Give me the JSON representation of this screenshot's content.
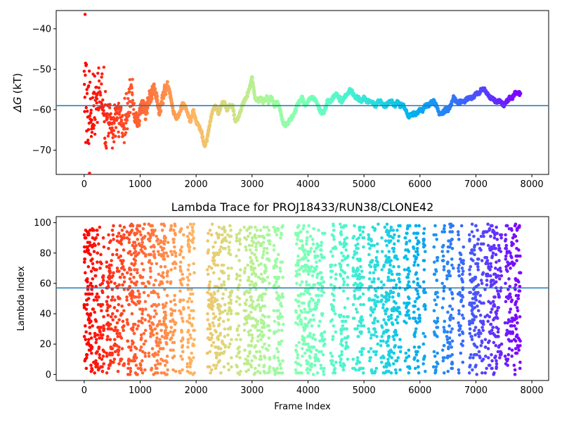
{
  "chart_data": [
    {
      "type": "scatter",
      "title": "",
      "xlabel": "",
      "ylabel": "ΔG (kT)",
      "ylabel_symbol": "ΔG",
      "ylabel_unit": "(kT)",
      "xlim": [
        -500,
        8300
      ],
      "ylim": [
        -76,
        -35.5
      ],
      "xticks": [
        0,
        1000,
        2000,
        3000,
        4000,
        5000,
        6000,
        7000,
        8000
      ],
      "xtick_labels": [
        "0",
        "1000",
        "2000",
        "3000",
        "4000",
        "5000",
        "6000",
        "7000",
        "8000"
      ],
      "yticks": [
        -40,
        -50,
        -60,
        -70
      ],
      "ytick_labels": [
        "−40",
        "−50",
        "−60",
        "−70"
      ],
      "hline": -59.0,
      "hline_color": "#1f77b4",
      "colormap": "rainbow (red at frame 0 → violet at frame 7800)",
      "n_points": 7800,
      "trace": [
        [
          0,
          -50
        ],
        [
          50,
          -58
        ],
        [
          100,
          -60
        ],
        [
          150,
          -62
        ],
        [
          200,
          -57
        ],
        [
          250,
          -52
        ],
        [
          300,
          -56
        ],
        [
          350,
          -60
        ],
        [
          400,
          -62
        ],
        [
          450,
          -63
        ],
        [
          500,
          -66
        ],
        [
          550,
          -62
        ],
        [
          600,
          -60
        ],
        [
          650,
          -61
        ],
        [
          700,
          -65
        ],
        [
          750,
          -62
        ],
        [
          800,
          -58
        ],
        [
          850,
          -57
        ],
        [
          900,
          -62
        ],
        [
          950,
          -63
        ],
        [
          1000,
          -61
        ],
        [
          1050,
          -59
        ],
        [
          1100,
          -61
        ],
        [
          1150,
          -58
        ],
        [
          1200,
          -56
        ],
        [
          1250,
          -54
        ],
        [
          1300,
          -58
        ],
        [
          1350,
          -61
        ],
        [
          1400,
          -57
        ],
        [
          1450,
          -55
        ],
        [
          1500,
          -54
        ],
        [
          1550,
          -57
        ],
        [
          1600,
          -61
        ],
        [
          1650,
          -62
        ],
        [
          1700,
          -61
        ],
        [
          1750,
          -59
        ],
        [
          1800,
          -59
        ],
        [
          1850,
          -61
        ],
        [
          1900,
          -63
        ],
        [
          1950,
          -60
        ],
        [
          2000,
          -63
        ],
        [
          2050,
          -64
        ],
        [
          2100,
          -66
        ],
        [
          2150,
          -69
        ],
        [
          2200,
          -67
        ],
        [
          2250,
          -63
        ],
        [
          2300,
          -60
        ],
        [
          2350,
          -59
        ],
        [
          2400,
          -61
        ],
        [
          2450,
          -59
        ],
        [
          2500,
          -58
        ],
        [
          2550,
          -60
        ],
        [
          2600,
          -59
        ],
        [
          2650,
          -59
        ],
        [
          2700,
          -63
        ],
        [
          2750,
          -62
        ],
        [
          2800,
          -60
        ],
        [
          2850,
          -58
        ],
        [
          2900,
          -57
        ],
        [
          2950,
          -55
        ],
        [
          3000,
          -52
        ],
        [
          3050,
          -57
        ],
        [
          3100,
          -58
        ],
        [
          3150,
          -57
        ],
        [
          3200,
          -58
        ],
        [
          3250,
          -57
        ],
        [
          3300,
          -58
        ],
        [
          3350,
          -57
        ],
        [
          3400,
          -59
        ],
        [
          3450,
          -58
        ],
        [
          3500,
          -60
        ],
        [
          3550,
          -63
        ],
        [
          3600,
          -64
        ],
        [
          3650,
          -63
        ],
        [
          3700,
          -62
        ],
        [
          3750,
          -61
        ],
        [
          3800,
          -59
        ],
        [
          3850,
          -58
        ],
        [
          3900,
          -57
        ],
        [
          3950,
          -59
        ],
        [
          4000,
          -58
        ],
        [
          4050,
          -57
        ],
        [
          4100,
          -57
        ],
        [
          4150,
          -58
        ],
        [
          4200,
          -60
        ],
        [
          4250,
          -61
        ],
        [
          4300,
          -60
        ],
        [
          4350,
          -58
        ],
        [
          4400,
          -58
        ],
        [
          4450,
          -57
        ],
        [
          4500,
          -56
        ],
        [
          4550,
          -57
        ],
        [
          4600,
          -58
        ],
        [
          4650,
          -57
        ],
        [
          4700,
          -56
        ],
        [
          4750,
          -55
        ],
        [
          4800,
          -56
        ],
        [
          4850,
          -57
        ],
        [
          4900,
          -57
        ],
        [
          4950,
          -58
        ],
        [
          5000,
          -57
        ],
        [
          5050,
          -58
        ],
        [
          5100,
          -58
        ],
        [
          5150,
          -58
        ],
        [
          5200,
          -59
        ],
        [
          5250,
          -58
        ],
        [
          5300,
          -58
        ],
        [
          5350,
          -59
        ],
        [
          5400,
          -59
        ],
        [
          5450,
          -58
        ],
        [
          5500,
          -58
        ],
        [
          5550,
          -59
        ],
        [
          5600,
          -58
        ],
        [
          5650,
          -59
        ],
        [
          5700,
          -59
        ],
        [
          5750,
          -60
        ],
        [
          5800,
          -62
        ],
        [
          5850,
          -61
        ],
        [
          5900,
          -61
        ],
        [
          5950,
          -61
        ],
        [
          6000,
          -60
        ],
        [
          6050,
          -60
        ],
        [
          6100,
          -59
        ],
        [
          6150,
          -59
        ],
        [
          6200,
          -58
        ],
        [
          6250,
          -58
        ],
        [
          6300,
          -59
        ],
        [
          6350,
          -61
        ],
        [
          6400,
          -61
        ],
        [
          6450,
          -60
        ],
        [
          6500,
          -60
        ],
        [
          6550,
          -59
        ],
        [
          6600,
          -57
        ],
        [
          6650,
          -58
        ],
        [
          6700,
          -58
        ],
        [
          6750,
          -58
        ],
        [
          6800,
          -58
        ],
        [
          6850,
          -57
        ],
        [
          6900,
          -57
        ],
        [
          6950,
          -57
        ],
        [
          7000,
          -56
        ],
        [
          7050,
          -56
        ],
        [
          7100,
          -55
        ],
        [
          7150,
          -55
        ],
        [
          7200,
          -56
        ],
        [
          7250,
          -57
        ],
        [
          7300,
          -57
        ],
        [
          7350,
          -58
        ],
        [
          7400,
          -58
        ],
        [
          7450,
          -58
        ],
        [
          7500,
          -59
        ],
        [
          7550,
          -58
        ],
        [
          7600,
          -57
        ],
        [
          7650,
          -57
        ],
        [
          7700,
          -56
        ],
        [
          7750,
          -56
        ],
        [
          7800,
          -56
        ]
      ]
    },
    {
      "type": "scatter",
      "title": "Lambda Trace for PROJ18433/RUN38/CLONE42",
      "xlabel": "Frame Index",
      "ylabel": "Lambda Index",
      "xlim": [
        -500,
        8300
      ],
      "ylim": [
        -4,
        104
      ],
      "xticks": [
        0,
        1000,
        2000,
        3000,
        4000,
        5000,
        6000,
        7000,
        8000
      ],
      "xtick_labels": [
        "0",
        "1000",
        "2000",
        "3000",
        "4000",
        "5000",
        "6000",
        "7000",
        "8000"
      ],
      "yticks": [
        0,
        20,
        40,
        60,
        80,
        100
      ],
      "ytick_labels": [
        "0",
        "20",
        "40",
        "60",
        "80",
        "100"
      ],
      "hline": 57.0,
      "hline_color": "#1f77b4",
      "colormap": "rainbow (red at frame 0 → violet at frame 7800)",
      "n_points": 7800,
      "lambda_range": [
        0,
        99
      ],
      "blocks": [
        [
          0,
          360
        ],
        [
          400,
          560
        ],
        [
          580,
          720
        ],
        [
          760,
          1100
        ],
        [
          1140,
          1500
        ],
        [
          1540,
          1640
        ],
        [
          1700,
          1780
        ],
        [
          1840,
          1980
        ],
        [
          2200,
          2540
        ],
        [
          2560,
          2640
        ],
        [
          2720,
          2800
        ],
        [
          2860,
          3320
        ],
        [
          3380,
          3560
        ],
        [
          3780,
          4300
        ],
        [
          4400,
          4500
        ],
        [
          4560,
          4720
        ],
        [
          4800,
          5000
        ],
        [
          5080,
          5260
        ],
        [
          5300,
          5660
        ],
        [
          5720,
          5820
        ],
        [
          5880,
          6000
        ],
        [
          6060,
          6100
        ],
        [
          6240,
          6320
        ],
        [
          6400,
          6440
        ],
        [
          6480,
          6600
        ],
        [
          6680,
          6780
        ],
        [
          6880,
          7140
        ],
        [
          7160,
          7460
        ],
        [
          7520,
          7800
        ]
      ]
    }
  ]
}
